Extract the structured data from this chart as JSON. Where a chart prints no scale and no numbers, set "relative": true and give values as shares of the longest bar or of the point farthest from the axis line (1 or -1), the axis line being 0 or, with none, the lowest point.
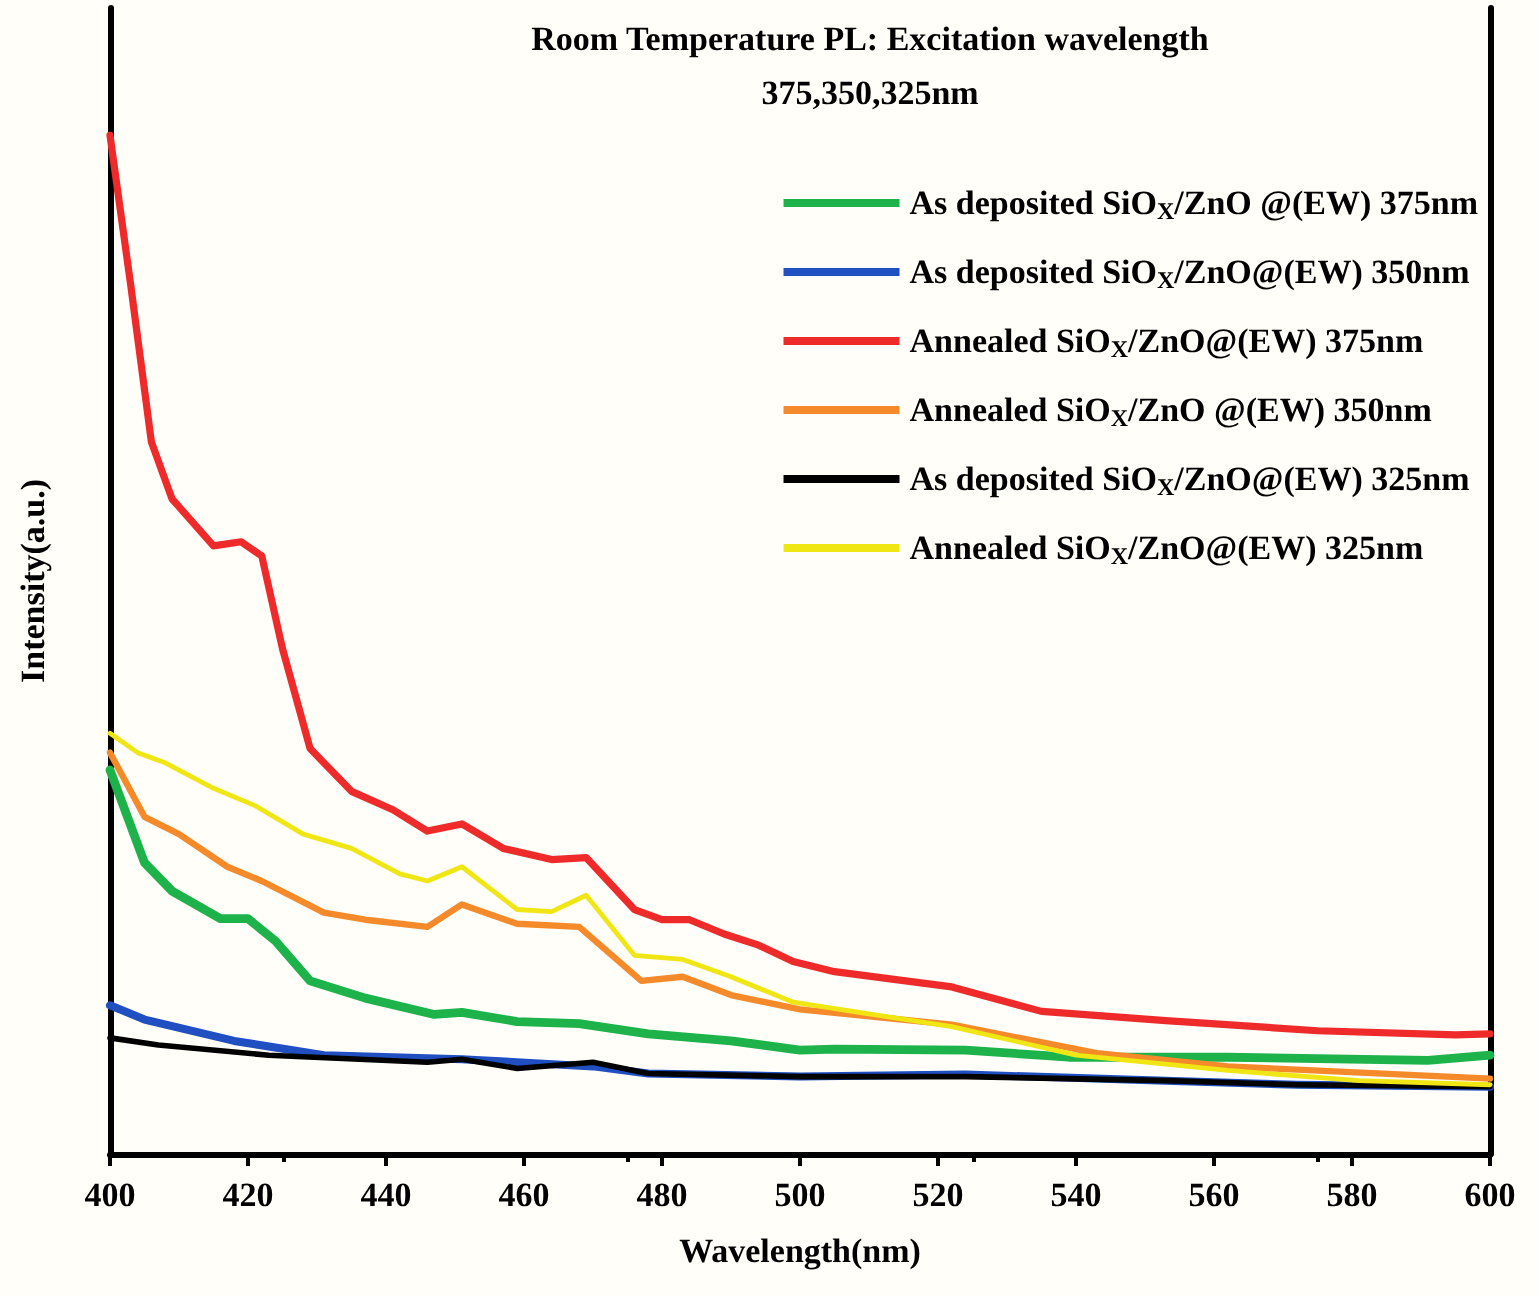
{
  "chart_data": {
    "type": "line",
    "title": "Room Temperature PL: Excitation wavelength",
    "subtitle": "375,350,325nm",
    "xlabel": "Wavelength(nm)",
    "ylabel": "Intensity(a.u.)",
    "relative": true,
    "xlim": [
      400,
      600
    ],
    "xticks": [
      400,
      420,
      440,
      460,
      480,
      500,
      520,
      540,
      560,
      580,
      600
    ],
    "grid": false,
    "legend": "top right",
    "marker": "none",
    "line_style": "solid",
    "series": [
      {
        "name": "As deposited SiO$_{X}$/ZnO @(EW) 375nm",
        "color": "#1db34a",
        "x": [
          400,
          405,
          409,
          416,
          420,
          424,
          429,
          437,
          447,
          451,
          459,
          468,
          478,
          490,
          500,
          505,
          524,
          539,
          562,
          591,
          600
        ],
        "values": [
          0.377,
          0.286,
          0.258,
          0.231,
          0.231,
          0.209,
          0.17,
          0.153,
          0.137,
          0.139,
          0.13,
          0.128,
          0.118,
          0.111,
          0.102,
          0.103,
          0.102,
          0.095,
          0.095,
          0.092,
          0.097
        ]
      },
      {
        "name": "As deposited SiO$_{X}$/ZnO@(EW) 350nm",
        "color": "#1f4fc0",
        "x": [
          400,
          405,
          418,
          431,
          451,
          470,
          478,
          500,
          524,
          553,
          572,
          600
        ],
        "values": [
          0.146,
          0.132,
          0.111,
          0.097,
          0.093,
          0.086,
          0.079,
          0.076,
          0.078,
          0.072,
          0.068,
          0.066
        ]
      },
      {
        "name": "Annealed SiO$_{X}$/ZnO@(EW) 375nm",
        "color": "#ee2a2a",
        "x": [
          400,
          403,
          406,
          409,
          415,
          419,
          422,
          425,
          429,
          435,
          441,
          446,
          451,
          457,
          464,
          469,
          476,
          480,
          484,
          489,
          494,
          499,
          505,
          522,
          535,
          553,
          575,
          595,
          600
        ],
        "values": [
          1.0,
          0.853,
          0.699,
          0.643,
          0.597,
          0.601,
          0.587,
          0.496,
          0.398,
          0.356,
          0.338,
          0.317,
          0.324,
          0.3,
          0.289,
          0.291,
          0.24,
          0.23,
          0.23,
          0.216,
          0.205,
          0.189,
          0.179,
          0.164,
          0.14,
          0.131,
          0.121,
          0.117,
          0.118
        ]
      },
      {
        "name": "Annealed SiO$_{X}$/ZnO @(EW) 350nm",
        "color": "#f58a2a",
        "x": [
          400,
          405,
          410,
          417,
          422,
          431,
          437,
          446,
          451,
          459,
          468,
          477,
          483,
          490,
          500,
          522,
          543,
          562,
          600
        ],
        "values": [
          0.394,
          0.331,
          0.314,
          0.282,
          0.268,
          0.237,
          0.23,
          0.223,
          0.245,
          0.226,
          0.223,
          0.17,
          0.174,
          0.156,
          0.142,
          0.127,
          0.099,
          0.086,
          0.074
        ]
      },
      {
        "name": "As deposited SiO$_{X}$/ZnO@(EW) 325nm",
        "color": "#000000",
        "x": [
          400,
          407,
          423,
          446,
          451,
          459,
          470,
          478,
          500,
          524,
          553,
          572,
          600
        ],
        "values": [
          0.114,
          0.107,
          0.097,
          0.09,
          0.093,
          0.084,
          0.09,
          0.079,
          0.076,
          0.076,
          0.072,
          0.068,
          0.066
        ]
      },
      {
        "name": "Annealed SiO$_{X}$/ZnO@(EW) 325nm",
        "color": "#f0e614",
        "x": [
          400,
          404,
          408,
          415,
          421,
          428,
          435,
          442,
          446,
          451,
          459,
          464,
          469,
          476,
          483,
          490,
          499,
          522,
          540,
          562,
          581,
          600
        ],
        "values": [
          0.413,
          0.394,
          0.384,
          0.359,
          0.342,
          0.314,
          0.3,
          0.275,
          0.268,
          0.282,
          0.24,
          0.238,
          0.254,
          0.195,
          0.191,
          0.174,
          0.149,
          0.125,
          0.097,
          0.082,
          0.072,
          0.068
        ]
      }
    ]
  }
}
